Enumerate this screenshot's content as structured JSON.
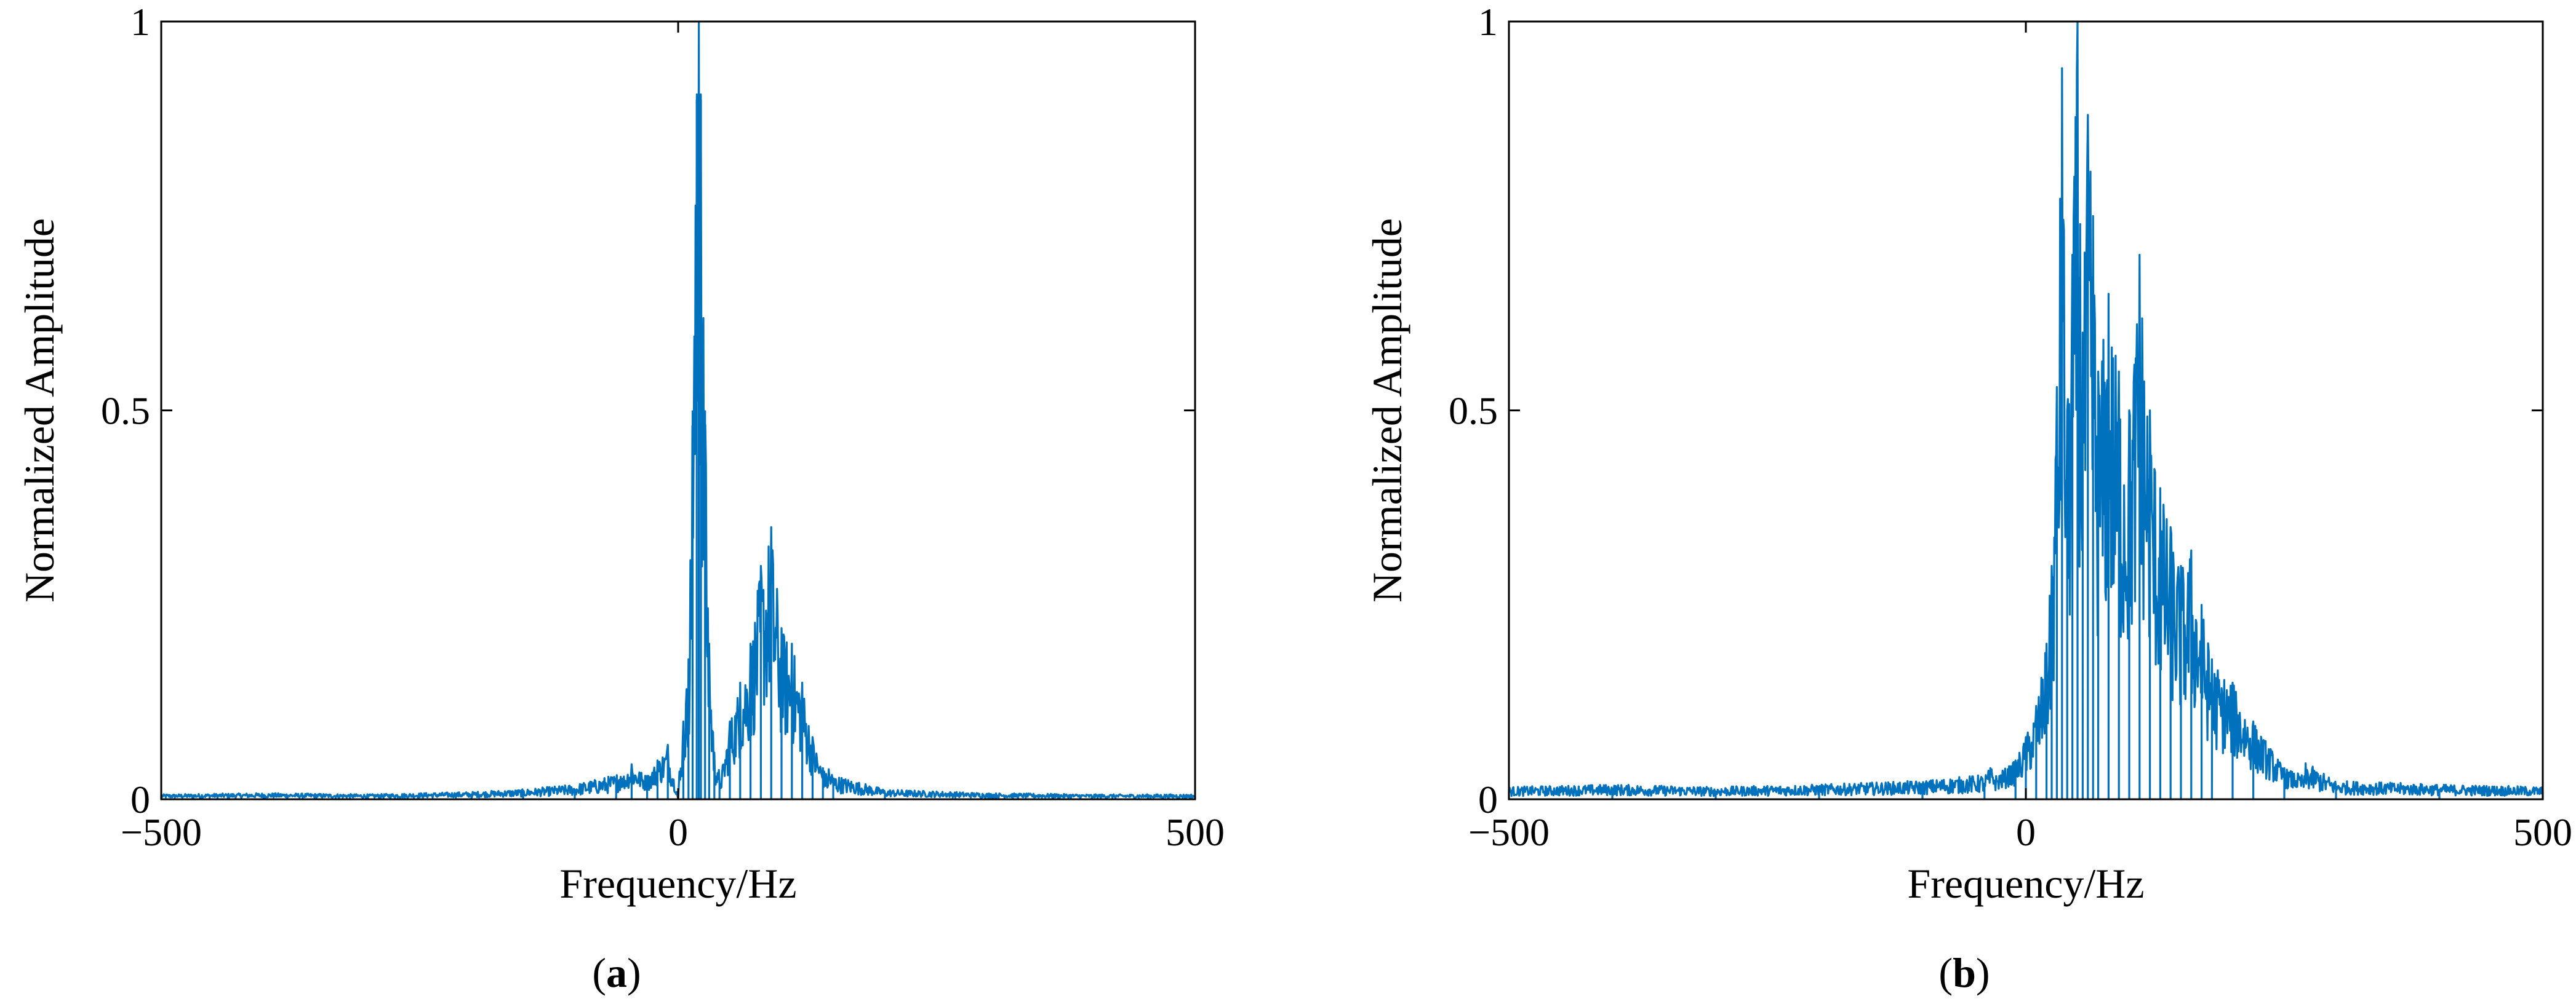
{
  "colors": {
    "series": "#0072BD",
    "axes": "#000000",
    "background": "#ffffff"
  },
  "chart_data": [
    {
      "panel_label": "a",
      "type": "line",
      "xlabel": "Frequency/Hz",
      "ylabel": "Normalized Amplitude",
      "xlim": [
        -500,
        500
      ],
      "ylim": [
        0,
        1
      ],
      "xticks": [
        -500,
        0,
        500
      ],
      "xtick_labels": [
        "−500",
        "0",
        "500"
      ],
      "yticks": [
        0,
        0.5,
        1
      ],
      "ytick_labels": [
        "0",
        "0.5",
        "1"
      ],
      "grid": false,
      "series": [
        {
          "points": [
            [
              -500,
              0.004
            ],
            [
              -400,
              0.005
            ],
            [
              -300,
              0.004
            ],
            [
              -200,
              0.006
            ],
            [
              -150,
              0.008
            ],
            [
              -100,
              0.012
            ],
            [
              -60,
              0.02
            ],
            [
              -45,
              0.045
            ],
            [
              -30,
              0.03
            ],
            [
              -20,
              0.05
            ],
            [
              -10,
              0.07
            ],
            [
              0,
              0.0
            ],
            [
              5,
              0.1
            ],
            [
              10,
              0.18
            ],
            [
              14,
              0.5
            ],
            [
              18,
              0.9
            ],
            [
              20,
              1.0
            ],
            [
              22,
              0.9
            ],
            [
              26,
              0.5
            ],
            [
              30,
              0.2
            ],
            [
              35,
              0.06
            ],
            [
              40,
              0.02
            ],
            [
              50,
              0.1
            ],
            [
              60,
              0.15
            ],
            [
              70,
              0.2
            ],
            [
              80,
              0.3
            ],
            [
              90,
              0.35
            ],
            [
              100,
              0.22
            ],
            [
              110,
              0.2
            ],
            [
              120,
              0.15
            ],
            [
              130,
              0.08
            ],
            [
              140,
              0.04
            ],
            [
              150,
              0.02
            ],
            [
              200,
              0.008
            ],
            [
              300,
              0.005
            ],
            [
              400,
              0.004
            ],
            [
              500,
              0.004
            ]
          ]
        }
      ]
    },
    {
      "panel_label": "b",
      "type": "line",
      "xlabel": "Frequency/Hz",
      "ylabel": "Normalized Amplitude",
      "xlim": [
        -500,
        500
      ],
      "ylim": [
        0,
        1
      ],
      "xticks": [
        -500,
        0,
        500
      ],
      "xtick_labels": [
        "−500",
        "0",
        "500"
      ],
      "yticks": [
        0,
        0.5,
        1
      ],
      "ytick_labels": [
        "0",
        "0.5",
        "1"
      ],
      "grid": false,
      "series": [
        {
          "points": [
            [
              -500,
              0.01
            ],
            [
              -400,
              0.012
            ],
            [
              -300,
              0.01
            ],
            [
              -200,
              0.012
            ],
            [
              -100,
              0.015
            ],
            [
              -40,
              0.02
            ],
            [
              -10,
              0.05
            ],
            [
              0,
              0.08
            ],
            [
              10,
              0.12
            ],
            [
              20,
              0.2
            ],
            [
              25,
              0.3
            ],
            [
              30,
              0.53
            ],
            [
              35,
              0.94
            ],
            [
              40,
              0.5
            ],
            [
              45,
              0.7
            ],
            [
              50,
              1.0
            ],
            [
              55,
              0.6
            ],
            [
              60,
              0.88
            ],
            [
              65,
              0.75
            ],
            [
              70,
              0.55
            ],
            [
              80,
              0.65
            ],
            [
              90,
              0.55
            ],
            [
              100,
              0.5
            ],
            [
              110,
              0.7
            ],
            [
              120,
              0.5
            ],
            [
              130,
              0.4
            ],
            [
              140,
              0.35
            ],
            [
              150,
              0.3
            ],
            [
              160,
              0.32
            ],
            [
              170,
              0.25
            ],
            [
              180,
              0.18
            ],
            [
              200,
              0.15
            ],
            [
              220,
              0.1
            ],
            [
              250,
              0.04
            ],
            [
              300,
              0.015
            ],
            [
              400,
              0.012
            ],
            [
              500,
              0.01
            ]
          ]
        }
      ]
    }
  ]
}
